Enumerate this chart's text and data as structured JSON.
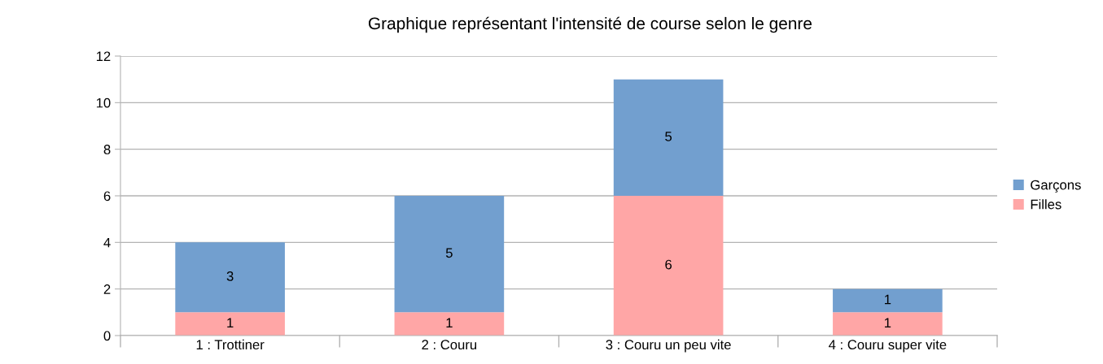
{
  "chart_data": {
    "type": "bar",
    "title": "Graphique représentant l'intensité de course selon le genre",
    "categories": [
      "1 : Trottiner",
      "2 : Couru",
      "3 : Couru un peu vite",
      "4 : Couru super vite"
    ],
    "stacked": true,
    "series": [
      {
        "name": "Filles",
        "color": "#ffa6a6",
        "values": [
          1,
          1,
          6,
          1
        ]
      },
      {
        "name": "Garçons",
        "color": "#729fcf",
        "values": [
          3,
          5,
          5,
          1
        ]
      }
    ],
    "ylim": [
      0,
      12
    ],
    "yticks": [
      0,
      2,
      4,
      6,
      8,
      10,
      12
    ],
    "grid": "y",
    "legend": "right",
    "data_labels": true
  }
}
